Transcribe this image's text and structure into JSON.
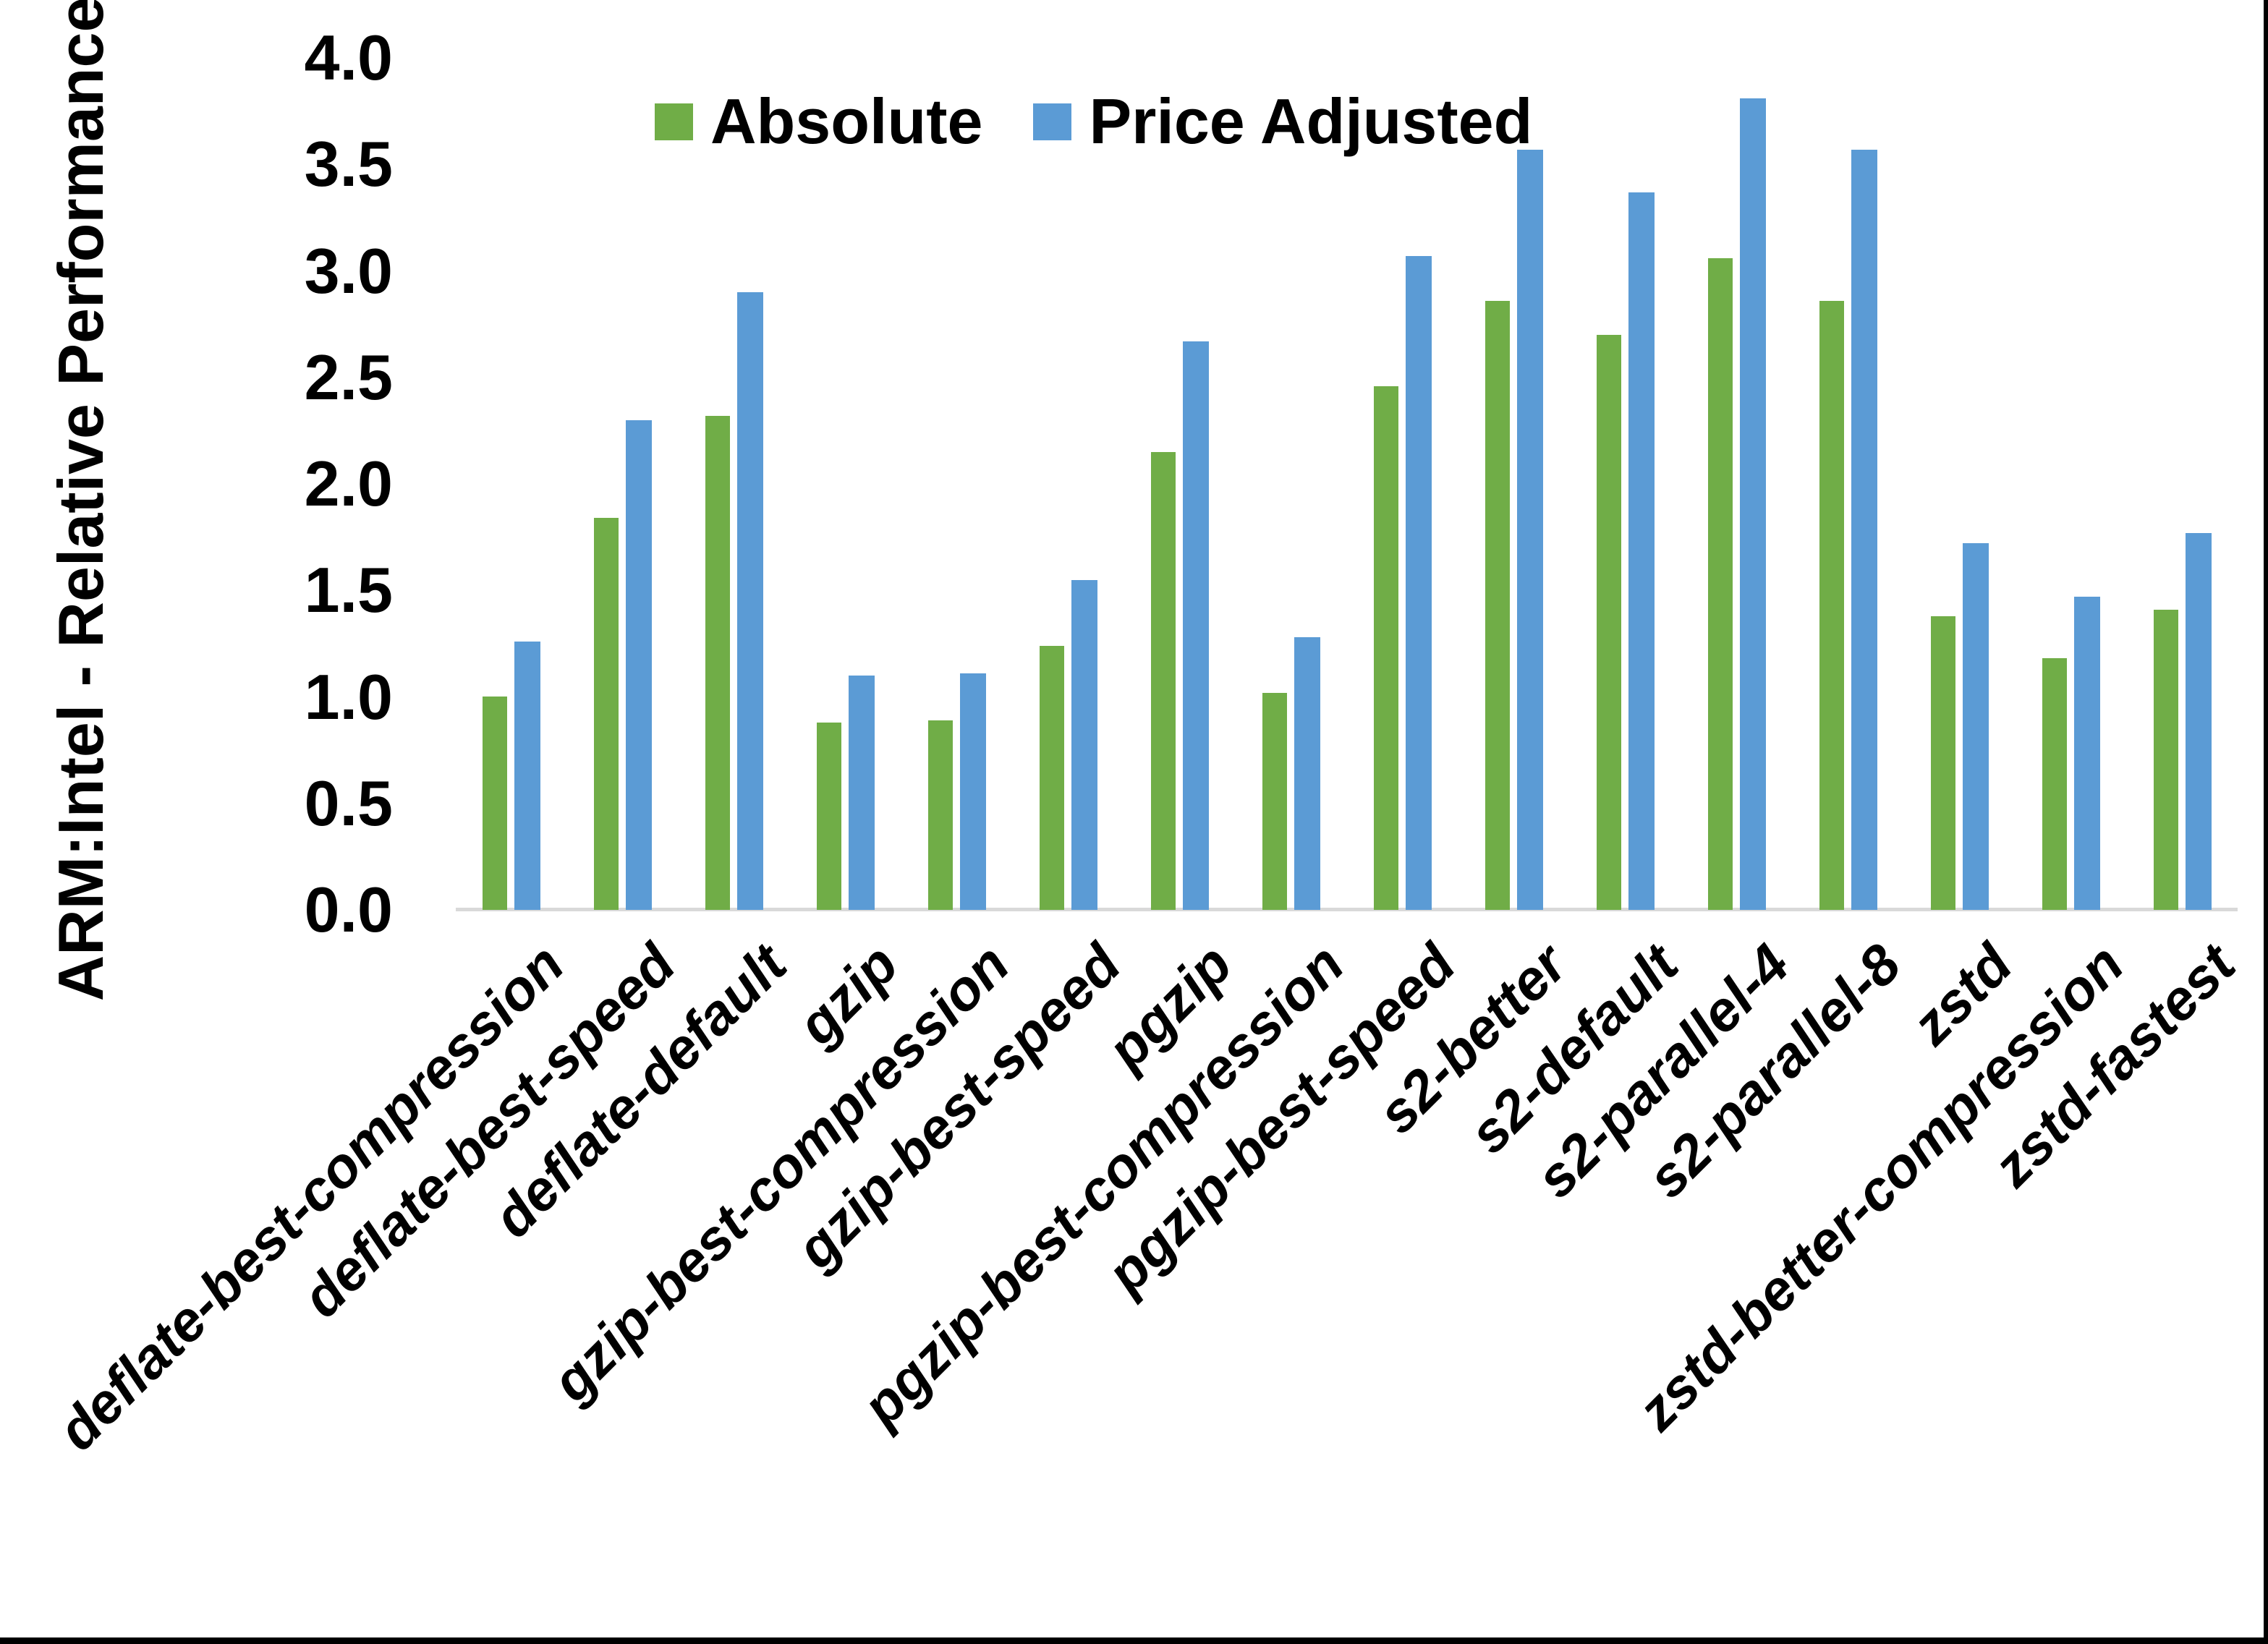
{
  "chart_data": {
    "type": "bar",
    "title": "",
    "ylabel": "ARM:Intel - Relative Performance",
    "xlabel": "",
    "ylim": [
      0.0,
      4.0
    ],
    "yticks": [
      "4.0",
      "3.5",
      "3.0",
      "2.5",
      "2.0",
      "1.5",
      "1.0",
      "0.5",
      "0.0"
    ],
    "ytick_values": [
      4.0,
      3.5,
      3.0,
      2.5,
      2.0,
      1.5,
      1.0,
      0.5,
      0.0
    ],
    "grid": false,
    "legend_position": "top",
    "axis_line_color": "#D9D9D9",
    "categories": [
      "deflate-best-compression",
      "deflate-best-speed",
      "deflate-default",
      "gzip",
      "gzip-best-compression",
      "gzip-best-speed",
      "pgzip",
      "pgzip-best-compression",
      "pgzip-best-speed",
      "s2-better",
      "s2-default",
      "s2-parallel-4",
      "s2-parallel-8",
      "zstd",
      "zstd-better-compression",
      "zstd-fastest"
    ],
    "series": [
      {
        "name": "Absolute",
        "color": "#70AD47",
        "values": [
          1.0,
          1.84,
          2.32,
          0.88,
          0.89,
          1.24,
          2.15,
          1.02,
          2.46,
          2.86,
          2.7,
          3.06,
          2.86,
          1.38,
          1.18,
          1.41
        ]
      },
      {
        "name": "Price Adjusted",
        "color": "#5B9BD5",
        "values": [
          1.26,
          2.3,
          2.9,
          1.1,
          1.11,
          1.55,
          2.67,
          1.28,
          3.07,
          3.57,
          3.37,
          3.81,
          3.57,
          1.72,
          1.47,
          1.77
        ]
      }
    ]
  }
}
